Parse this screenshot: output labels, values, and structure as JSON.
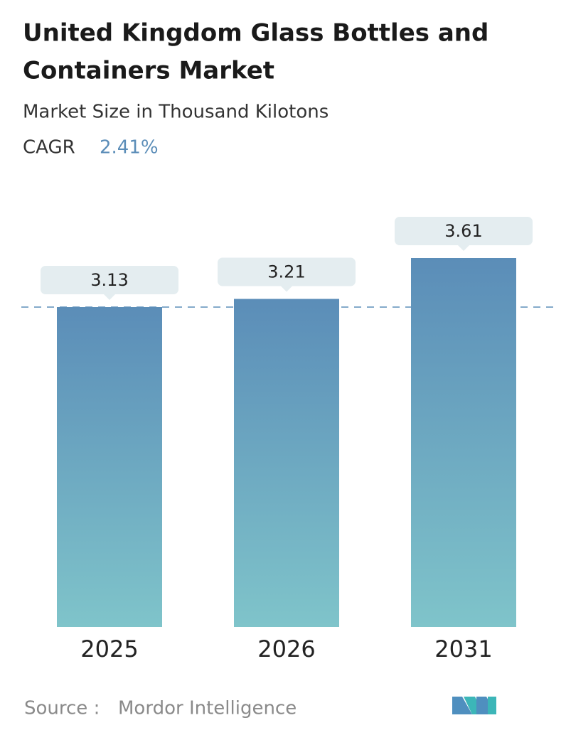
{
  "chart_data": {
    "type": "bar",
    "title": [
      "United Kingdom Glass Bottles and",
      "Containers Market"
    ],
    "subtitle": "Market Size in Thousand Kilotons",
    "cagr_label": "CAGR",
    "cagr_value": "2.41%",
    "categories": [
      "2025",
      "2026",
      "2031"
    ],
    "values": [
      3.13,
      3.21,
      3.61
    ],
    "color_top": "#5b8db8",
    "color_bottom": "#7fc4ca",
    "source_label": "Source :",
    "source": "Mordor Intelligence"
  }
}
